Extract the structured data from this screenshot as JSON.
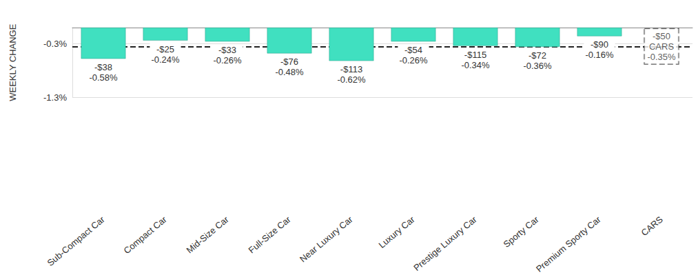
{
  "chart_data": {
    "type": "bar",
    "y_label": "WEEKLY CHANGE",
    "categories": [
      "Sub-Compact Car",
      "Compact Car",
      "Mid-Size Car",
      "Full-Size Car",
      "Near Luxury Car",
      "Luxury Car",
      "Prestige Luxury Car",
      "Sporty Car",
      "Premium Sporty Car",
      "CARS"
    ],
    "values": [
      -0.58,
      -0.24,
      -0.26,
      -0.48,
      -0.62,
      -0.26,
      -0.34,
      -0.36,
      -0.16,
      null
    ],
    "value_labels": [
      "-$38\n-0.58%",
      "-$25\n-0.24%",
      "-$33\n-0.26%",
      "-$76\n-0.48%",
      "-$113\n-0.62%",
      "-$54\n-0.26%",
      "-$115\n-0.34%",
      "-$72\n-0.36%",
      "-$90\n-0.16%",
      null
    ],
    "color": "#40e0c0",
    "data_labels": true,
    "average": {
      "category": "CARS",
      "value": -0.35,
      "label": "-$50\nCARS\n-0.35%",
      "line_style": "dashed"
    },
    "ylim": [
      -1.3,
      0
    ],
    "yticks": [
      {
        "value": -1.3,
        "label": "-1.3%"
      },
      {
        "value": -0.3,
        "label": "-0.3%"
      }
    ],
    "grid": true
  }
}
